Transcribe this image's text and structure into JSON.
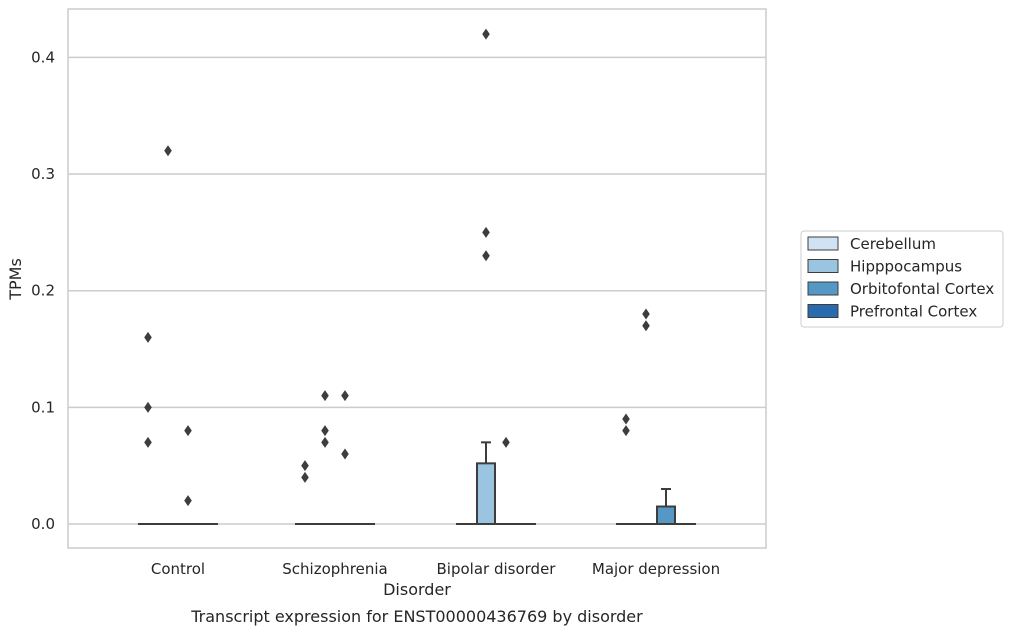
{
  "chart_data": {
    "type": "box",
    "caption": "Transcript expression for ENST00000436769 by disorder",
    "xlabel": "Disorder",
    "ylabel": "TPMs",
    "ylim": [
      -0.02,
      0.442
    ],
    "yticks": [
      0.0,
      0.1,
      0.2,
      0.3,
      0.4
    ],
    "ytick_labels": [
      "0.0",
      "0.1",
      "0.2",
      "0.3",
      "0.4"
    ],
    "grid": "horizontal",
    "legend_position": "right",
    "categories": [
      "Control",
      "Schizophrenia",
      "Bipolar disorder",
      "Major depression"
    ],
    "series": [
      {
        "name": "Cerebellum",
        "color": "#d1e2f2",
        "boxes": [
          {
            "category": "Control",
            "q1": 0,
            "median": 0,
            "q3": 0,
            "whisker_low": 0,
            "whisker_high": 0,
            "outliers": [
              0.07,
              0.1,
              0.16
            ]
          },
          {
            "category": "Schizophrenia",
            "q1": 0,
            "median": 0,
            "q3": 0,
            "whisker_low": 0,
            "whisker_high": 0,
            "outliers": [
              0.04,
              0.05
            ]
          },
          {
            "category": "Bipolar disorder",
            "q1": 0,
            "median": 0,
            "q3": 0,
            "whisker_low": 0,
            "whisker_high": 0,
            "outliers": []
          },
          {
            "category": "Major depression",
            "q1": 0,
            "median": 0,
            "q3": 0,
            "whisker_low": 0,
            "whisker_high": 0,
            "outliers": [
              0.08,
              0.09
            ]
          }
        ]
      },
      {
        "name": "Hipppocampus",
        "color": "#9ac4df",
        "boxes": [
          {
            "category": "Control",
            "q1": 0,
            "median": 0,
            "q3": 0,
            "whisker_low": 0,
            "whisker_high": 0,
            "outliers": [
              0.32
            ]
          },
          {
            "category": "Schizophrenia",
            "q1": 0,
            "median": 0,
            "q3": 0,
            "whisker_low": 0,
            "whisker_high": 0,
            "outliers": [
              0.07,
              0.08,
              0.11
            ]
          },
          {
            "category": "Bipolar disorder",
            "q1": 0,
            "median": 0,
            "q3": 0.052,
            "whisker_low": 0,
            "whisker_high": 0.07,
            "outliers": [
              0.23,
              0.25,
              0.42
            ]
          },
          {
            "category": "Major depression",
            "q1": 0,
            "median": 0,
            "q3": 0,
            "whisker_low": 0,
            "whisker_high": 0,
            "outliers": [
              0.17,
              0.18
            ]
          }
        ]
      },
      {
        "name": "Orbitofontal Cortex",
        "color": "#5597c5",
        "boxes": [
          {
            "category": "Control",
            "q1": 0,
            "median": 0,
            "q3": 0,
            "whisker_low": 0,
            "whisker_high": 0,
            "outliers": [
              0.02,
              0.08
            ]
          },
          {
            "category": "Schizophrenia",
            "q1": 0,
            "median": 0,
            "q3": 0,
            "whisker_low": 0,
            "whisker_high": 0,
            "outliers": [
              0.06,
              0.11
            ]
          },
          {
            "category": "Bipolar disorder",
            "q1": 0,
            "median": 0,
            "q3": 0,
            "whisker_low": 0,
            "whisker_high": 0,
            "outliers": [
              0.07
            ]
          },
          {
            "category": "Major depression",
            "q1": 0,
            "median": 0,
            "q3": 0.015,
            "whisker_low": 0,
            "whisker_high": 0.03,
            "outliers": []
          }
        ]
      },
      {
        "name": "Prefrontal Cortex",
        "color": "#2a6aae",
        "boxes": [
          {
            "category": "Control",
            "q1": 0,
            "median": 0,
            "q3": 0,
            "whisker_low": 0,
            "whisker_high": 0,
            "outliers": []
          },
          {
            "category": "Schizophrenia",
            "q1": 0,
            "median": 0,
            "q3": 0,
            "whisker_low": 0,
            "whisker_high": 0,
            "outliers": []
          },
          {
            "category": "Bipolar disorder",
            "q1": 0,
            "median": 0,
            "q3": 0,
            "whisker_low": 0,
            "whisker_high": 0,
            "outliers": []
          },
          {
            "category": "Major depression",
            "q1": 0,
            "median": 0,
            "q3": 0,
            "whisker_low": 0,
            "whisker_high": 0,
            "outliers": []
          }
        ]
      }
    ]
  }
}
